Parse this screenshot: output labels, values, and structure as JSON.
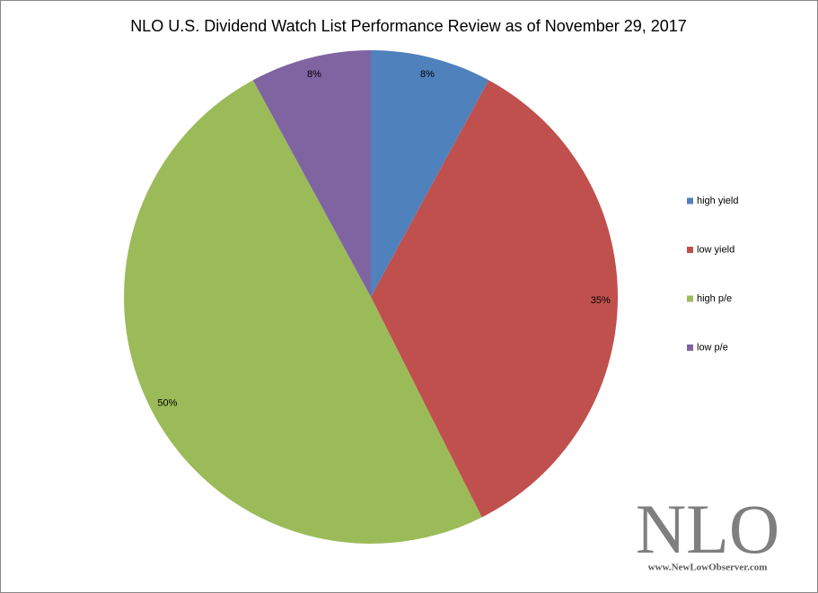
{
  "chart_data": {
    "type": "pie",
    "title": "NLO U.S. Dividend Watch List Performance Review  as of November 29, 2017",
    "categories": [
      "high yield",
      "low yield",
      "high p/e",
      "low p/e"
    ],
    "values": [
      8,
      35,
      50,
      8
    ],
    "value_labels": [
      "8%",
      "35%",
      "50%",
      "8%"
    ],
    "colors": [
      "#4f81bd",
      "#c0504d",
      "#9bbb59",
      "#8064a2"
    ],
    "legend": "right"
  },
  "watermark": {
    "text": "NLO",
    "url": "www.NewLowObserver.com"
  }
}
